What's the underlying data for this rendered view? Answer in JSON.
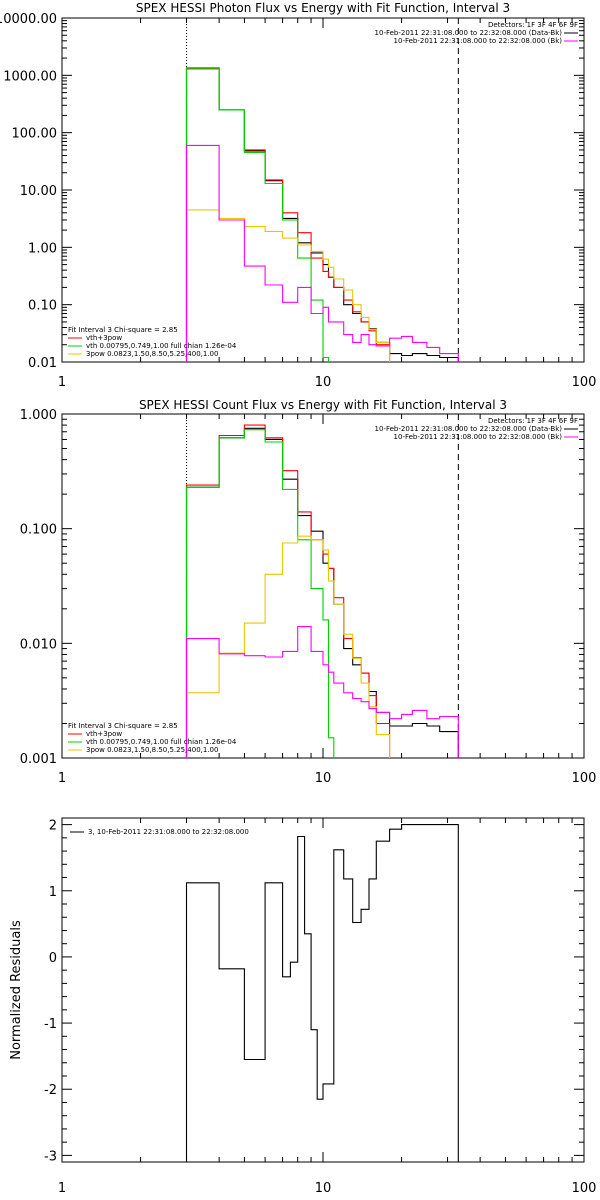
{
  "chart_data": [
    {
      "type": "line",
      "title": "SPEX HESSI Photon Flux vs Energy with Fit Function, Interval 3",
      "xscale": "log",
      "yscale": "log",
      "xlim": [
        1,
        100
      ],
      "ylim": [
        0.01,
        10000
      ],
      "xticks": [
        {
          "v": 1,
          "label": "1"
        },
        {
          "v": 10,
          "label": "10"
        },
        {
          "v": 100,
          "label": "100"
        }
      ],
      "yticks": [
        {
          "v": 0.01,
          "label": "0.01"
        },
        {
          "v": 0.1,
          "label": "0.10"
        },
        {
          "v": 1,
          "label": "1.00"
        },
        {
          "v": 10,
          "label": "10.00"
        },
        {
          "v": 100,
          "label": "100.00"
        },
        {
          "v": 1000,
          "label": "1000.00"
        },
        {
          "v": 10000,
          "label": "10000.00"
        }
      ],
      "vlines": [
        {
          "x": 3.0,
          "style": "dotted"
        },
        {
          "x": 33.0,
          "style": "dashed"
        }
      ],
      "legend_header": [
        "Detectors: 1F 3F 4F 6F 9F"
      ],
      "legend_top": [
        {
          "text": "10-Feb-2011 22:31:08.000 to 22:32:08.000 (Data-Bk)",
          "color": "#000000"
        },
        {
          "text": "10-Feb-2011 22:31:08.000 to 22:32:08.000 (Bk)",
          "color": "#ff00ff"
        }
      ],
      "legend_bottom_header": "Fit Interval 3   Chi-square = 2.85",
      "legend_bottom": [
        {
          "text": "vth+3pow",
          "color": "#ff0000"
        },
        {
          "text": "vth 0.00795,0.749,1.00   full chian 1.26e-04",
          "color": "#00d000"
        },
        {
          "text": "3pow 0.0823,1.50,8.50,5.25,400,1.00",
          "color": "#e6c800"
        }
      ],
      "edges": [
        3.0,
        3.5,
        4.0,
        4.5,
        5.0,
        5.5,
        6.0,
        6.5,
        7.0,
        7.5,
        8.0,
        8.5,
        9.0,
        9.5,
        10.0,
        10.5,
        11.0,
        12.0,
        13.0,
        14.0,
        15.0,
        16.0,
        18.0,
        20.0,
        22.0,
        25.0,
        28.0,
        33.0
      ],
      "series": [
        {
          "name": "Data-Bk",
          "color": "#000000",
          "values": [
            1300,
            1300,
            250,
            250,
            48,
            48,
            14.5,
            14.5,
            3.2,
            3.2,
            1.2,
            1.2,
            0.8,
            0.8,
            0.5,
            0.3,
            0.2,
            0.1,
            0.07,
            0.05,
            0.038,
            0.022,
            0.014,
            0.013,
            0.014,
            0.013,
            0.012
          ]
        },
        {
          "name": "vth+3pow",
          "color": "#ff0000",
          "values": [
            1350,
            1350,
            250,
            250,
            50,
            50,
            15,
            15,
            4.0,
            4.0,
            1.8,
            1.8,
            0.65,
            0.65,
            0.38,
            0.3,
            0.2,
            0.12,
            0.075,
            0.05,
            0.035,
            0.02
          ]
        },
        {
          "name": "vth",
          "color": "#00d000",
          "values": [
            1300,
            1300,
            250,
            250,
            45,
            45,
            13,
            13,
            3.0,
            3.0,
            0.65,
            0.65,
            0.12,
            0.12,
            0.012
          ]
        },
        {
          "name": "3pow",
          "color": "#e6c800",
          "values": [
            4.5,
            4.5,
            3.2,
            3.2,
            2.3,
            2.3,
            1.9,
            1.9,
            1.45,
            1.45,
            1.1,
            1.1,
            0.85,
            0.85,
            0.62,
            0.45,
            0.28,
            0.18,
            0.1,
            0.06,
            0.037,
            0.022
          ]
        },
        {
          "name": "Bk",
          "color": "#ff00ff",
          "values": [
            60,
            60,
            3.0,
            3.0,
            0.47,
            0.47,
            0.22,
            0.22,
            0.11,
            0.11,
            0.2,
            0.2,
            0.07,
            0.07,
            0.09,
            0.05,
            0.05,
            0.03,
            0.022,
            0.03,
            0.02,
            0.019,
            0.026,
            0.028,
            0.022,
            0.018,
            0.014
          ]
        }
      ]
    },
    {
      "type": "line",
      "title": "SPEX HESSI Count Flux vs Energy with Fit Function, Interval 3",
      "xscale": "log",
      "yscale": "log",
      "xlim": [
        1,
        100
      ],
      "ylim": [
        0.001,
        1.0
      ],
      "xticks": [
        {
          "v": 1,
          "label": "1"
        },
        {
          "v": 10,
          "label": "10"
        },
        {
          "v": 100,
          "label": "100"
        }
      ],
      "yticks": [
        {
          "v": 0.001,
          "label": "0.001"
        },
        {
          "v": 0.01,
          "label": "0.010"
        },
        {
          "v": 0.1,
          "label": "0.100"
        },
        {
          "v": 1.0,
          "label": "1.000"
        }
      ],
      "vlines": [
        {
          "x": 3.0,
          "style": "dotted"
        },
        {
          "x": 33.0,
          "style": "dashed"
        }
      ],
      "legend_header": [
        "Detectors: 1F 3F 4F 6F 9F"
      ],
      "legend_top": [
        {
          "text": "10-Feb-2011 22:31:08.000 to 22:32:08.000 (Data-Bk)",
          "color": "#000000"
        },
        {
          "text": "10-Feb-2011 22:31:08.000 to 22:32:08.000 (Bk)",
          "color": "#ff00ff"
        }
      ],
      "legend_bottom_header": "Fit Interval 3   Chi-square = 2.85",
      "legend_bottom": [
        {
          "text": "vth+3pow",
          "color": "#ff0000"
        },
        {
          "text": "vth 0.00795,0.749,1.00   full chian 1.26e-04",
          "color": "#00d000"
        },
        {
          "text": "3pow 0.0823,1.50,8.50,5.25,400,1.00",
          "color": "#e6c800"
        }
      ],
      "edges": [
        3.0,
        3.5,
        4.0,
        4.5,
        5.0,
        5.5,
        6.0,
        6.5,
        7.0,
        7.5,
        8.0,
        8.5,
        9.0,
        9.5,
        10.0,
        10.5,
        11.0,
        12.0,
        13.0,
        14.0,
        15.0,
        16.0,
        18.0,
        20.0,
        22.0,
        25.0,
        28.0,
        33.0
      ],
      "series": [
        {
          "name": "Data-Bk",
          "color": "#000000",
          "values": [
            0.23,
            0.23,
            0.62,
            0.62,
            0.75,
            0.75,
            0.6,
            0.6,
            0.27,
            0.27,
            0.13,
            0.13,
            0.095,
            0.095,
            0.05,
            0.045,
            0.022,
            0.009,
            0.0065,
            0.0055,
            0.0038,
            0.0025,
            0.0019,
            0.0019,
            0.002,
            0.0019,
            0.0017
          ]
        },
        {
          "name": "vth+3pow",
          "color": "#ff0000",
          "values": [
            0.24,
            0.24,
            0.65,
            0.65,
            0.8,
            0.8,
            0.62,
            0.62,
            0.32,
            0.32,
            0.14,
            0.14,
            0.08,
            0.08,
            0.06,
            0.045,
            0.025,
            0.011,
            0.0075,
            0.0055,
            0.0035,
            0.002
          ]
        },
        {
          "name": "vth",
          "color": "#00d000",
          "values": [
            0.23,
            0.23,
            0.62,
            0.62,
            0.73,
            0.73,
            0.57,
            0.57,
            0.22,
            0.22,
            0.08,
            0.08,
            0.03,
            0.03,
            0.016,
            0.0015
          ]
        },
        {
          "name": "3pow",
          "color": "#e6c800",
          "values": [
            0.0037,
            0.0037,
            0.0082,
            0.0082,
            0.015,
            0.015,
            0.04,
            0.04,
            0.075,
            0.075,
            0.086,
            0.086,
            0.08,
            0.08,
            0.065,
            0.035,
            0.022,
            0.012,
            0.0074,
            0.0045,
            0.0028,
            0.0016
          ]
        },
        {
          "name": "Bk",
          "color": "#ff00ff",
          "values": [
            0.011,
            0.011,
            0.0081,
            0.0081,
            0.0078,
            0.0078,
            0.0076,
            0.0076,
            0.0085,
            0.0085,
            0.014,
            0.014,
            0.0085,
            0.0085,
            0.0065,
            0.0056,
            0.0045,
            0.0037,
            0.0033,
            0.0031,
            0.0027,
            0.0025,
            0.0022,
            0.0024,
            0.0026,
            0.0022,
            0.0023
          ]
        }
      ]
    },
    {
      "type": "line",
      "title": "",
      "xscale": "log",
      "yscale": "linear",
      "ylabel": "Normalized Residuals",
      "xlim": [
        1,
        100
      ],
      "ylim": [
        -3.1,
        2.1
      ],
      "xticks": [
        {
          "v": 1,
          "label": "1"
        },
        {
          "v": 10,
          "label": "10"
        },
        {
          "v": 100,
          "label": "100"
        }
      ],
      "yticks": [
        {
          "v": -3,
          "label": "-3"
        },
        {
          "v": -2,
          "label": "-2"
        },
        {
          "v": -1,
          "label": "-1"
        },
        {
          "v": 0,
          "label": "0"
        },
        {
          "v": 1,
          "label": "1"
        },
        {
          "v": 2,
          "label": "2"
        }
      ],
      "legend_bottom": [],
      "legend_top": [],
      "legend_header": [],
      "legend_inset": {
        "text": "3, 10-Feb-2011 22:31:08.000 to 22:32:08.000",
        "color": "#000000"
      },
      "edges": [
        3.0,
        4.0,
        5.0,
        6.0,
        7.0,
        7.5,
        8.0,
        8.5,
        9.0,
        9.5,
        10.0,
        11.0,
        12.0,
        13.0,
        14.0,
        15.0,
        16.0,
        18.0,
        20.0,
        22.0,
        25.0,
        28.0,
        30.0,
        33.0
      ],
      "series": [
        {
          "name": "residuals",
          "color": "#000000",
          "values": [
            1.12,
            -0.18,
            -1.55,
            1.12,
            -0.3,
            -0.08,
            1.82,
            0.35,
            -1.1,
            -2.15,
            -1.92,
            1.62,
            1.18,
            0.52,
            0.72,
            1.18,
            1.75,
            1.93,
            2.0,
            2.0,
            2.0,
            2.0,
            2.0
          ]
        }
      ]
    }
  ]
}
